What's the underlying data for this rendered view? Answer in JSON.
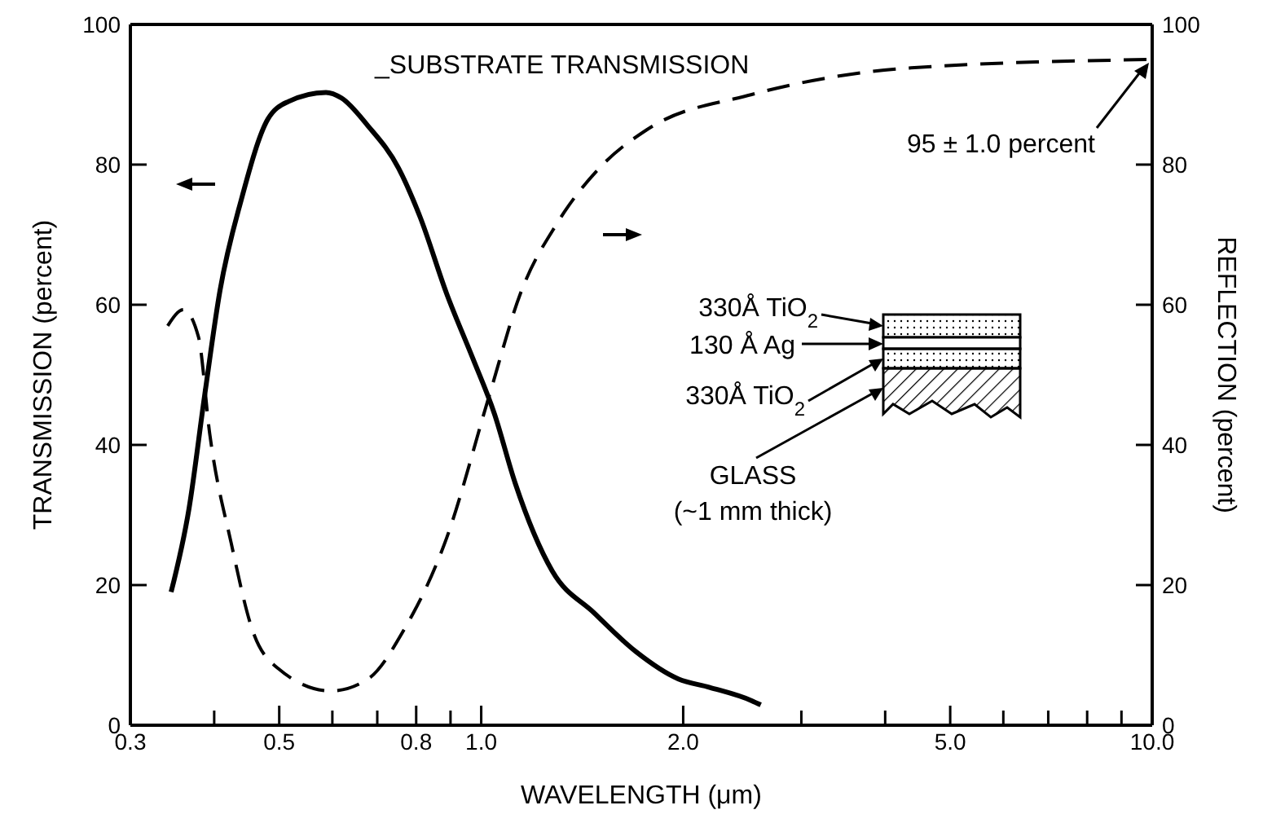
{
  "chart_data": {
    "type": "line",
    "xlabel": "WAVELENGTH (μm)",
    "ylabel": "TRANSMISSION (percent)",
    "y2label": "REFLECTION (percent)",
    "log": "x",
    "grid": false,
    "legend": false,
    "marker": "none",
    "xlim": [
      0.3,
      10
    ],
    "xticks": [
      0.3,
      {
        "value": 0.4,
        "label": null
      },
      0.5,
      {
        "value": 0.6,
        "label": null
      },
      {
        "value": 0.7,
        "label": null
      },
      0.8,
      {
        "value": 0.9,
        "label": null
      },
      {
        "value": 1,
        "label": "1.0"
      },
      {
        "value": 2,
        "label": "2.0"
      },
      {
        "value": 3,
        "label": null
      },
      {
        "value": 4,
        "label": null
      },
      {
        "value": 5,
        "label": "5.0"
      },
      {
        "value": 6,
        "label": null
      },
      {
        "value": 7,
        "label": null
      },
      {
        "value": 8,
        "label": null
      },
      {
        "value": 9,
        "label": null
      },
      {
        "value": 10,
        "label": "10.0"
      }
    ],
    "ylim": [
      0,
      100
    ],
    "yticks": [
      0,
      20,
      40,
      60,
      80,
      100
    ],
    "y2lim": [
      0,
      100
    ],
    "y2ticks": [
      0,
      20,
      40,
      60,
      80,
      100
    ],
    "series": [
      {
        "color": "#000000",
        "line_style": "solid",
        "x": [
          0.345,
          0.367,
          0.387,
          0.408,
          0.439,
          0.481,
          0.516,
          0.587,
          0.619,
          0.677,
          0.753,
          0.811,
          0.888,
          0.972,
          1.045,
          1.124,
          1.276,
          1.474,
          1.7,
          1.967,
          2.19,
          2.53,
          2.61
        ],
        "values": [
          19,
          31,
          47,
          62,
          75,
          86.5,
          89,
          90.3,
          89.5,
          85.6,
          79.5,
          72.5,
          61.6,
          52.3,
          44.6,
          34.5,
          22,
          16,
          10.5,
          6.6,
          5.4,
          3.5,
          2.9
        ]
      },
      {
        "color": "#000000",
        "line_style": "dashed",
        "axis": "y2",
        "x": [
          0.341,
          0.36,
          0.379,
          0.394,
          0.424,
          0.456,
          0.498,
          0.597,
          0.678,
          0.767,
          0.888,
          1.027,
          1.144,
          1.299,
          1.5,
          1.767,
          2.53,
          4.37,
          10
        ],
        "values": [
          57,
          59.3,
          55.4,
          41.5,
          26,
          13.6,
          8.1,
          4.9,
          6.6,
          13.6,
          26.7,
          46.9,
          61.6,
          71.7,
          79.5,
          85,
          90,
          93.8,
          95
        ]
      }
    ],
    "annotations": [
      "_SUBSTRATE TRANSMISSION",
      {
        "text": "95 ± 1.0 percent",
        "x": 10,
        "y": 95
      },
      "330Å TiO$_{2}$",
      "130 Å Ag",
      "330Å TiO$_{2}$",
      "GLASS",
      "(~1 mm thick)"
    ]
  }
}
